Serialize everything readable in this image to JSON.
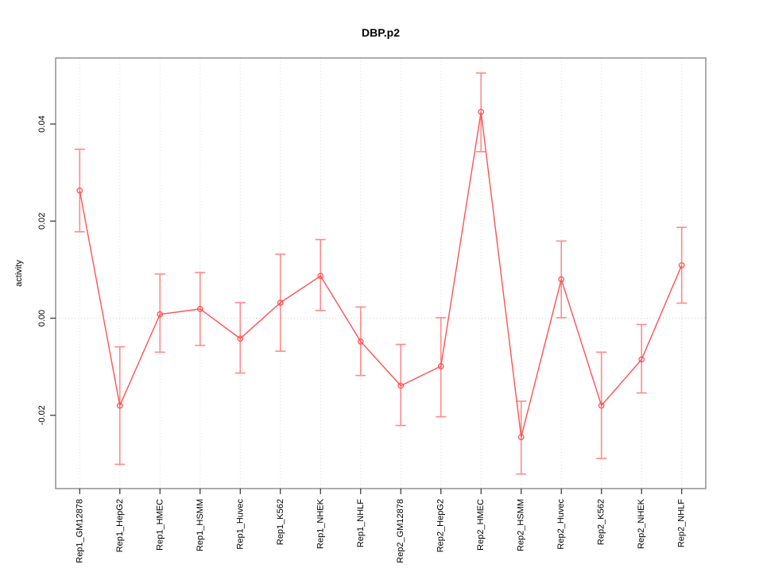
{
  "figure": {
    "background": "#ffffff"
  },
  "chart_data": {
    "type": "line",
    "title": "DBP.p2",
    "xlabel": "",
    "ylabel": "activity",
    "legend": "none",
    "grid": "dotted vertical line at every category; dotted horizontal line at y=0",
    "marker": "open-circle",
    "error_bars": true,
    "categories": [
      "Rep1_GM12878",
      "Rep1_HepG2",
      "Rep1_HMEC",
      "Rep1_HSMM",
      "Rep1_Huvec",
      "Rep1_K562",
      "Rep1_NHEK",
      "Rep1_NHLF",
      "Rep2_GM12878",
      "Rep2_HepG2",
      "Rep2_HMEC",
      "Rep2_HSMM",
      "Rep2_Huvec",
      "Rep2_K562",
      "Rep2_NHEK",
      "Rep2_NHLF"
    ],
    "series": [
      {
        "name": "activity",
        "values": [
          0.0263,
          -0.018,
          0.0008,
          0.0019,
          -0.0042,
          0.0032,
          0.0087,
          -0.0048,
          -0.0139,
          -0.0099,
          0.0425,
          -0.0245,
          0.008,
          -0.018,
          -0.0085,
          0.0109
        ],
        "error_high": [
          0.0348,
          -0.0059,
          0.0091,
          0.0094,
          0.0032,
          0.0132,
          0.0162,
          0.0023,
          -0.0054,
          0.0001,
          0.0505,
          -0.0171,
          0.0159,
          -0.007,
          -0.0013,
          0.0187
        ],
        "error_low": [
          0.0178,
          -0.0301,
          -0.007,
          -0.0056,
          -0.0113,
          -0.0068,
          0.0016,
          -0.0118,
          -0.0221,
          -0.0203,
          0.0343,
          -0.0321,
          0.0001,
          -0.0289,
          -0.0154,
          0.0031
        ]
      }
    ],
    "yticks": [
      -0.02,
      0.0,
      0.02,
      0.04
    ],
    "ytick_labels": [
      "-0.02",
      "0.00",
      "0.02",
      "0.04"
    ],
    "ylim": [
      -0.0351,
      0.0536
    ],
    "colors": {
      "line": "#ff5252",
      "marker": "#ff5252",
      "error_bar": "#ff8a8a",
      "grid": "#dcdcdc",
      "zero_line": "#cfcfcf",
      "box": "#808080",
      "tick": "#303030",
      "text": "#000000"
    }
  }
}
